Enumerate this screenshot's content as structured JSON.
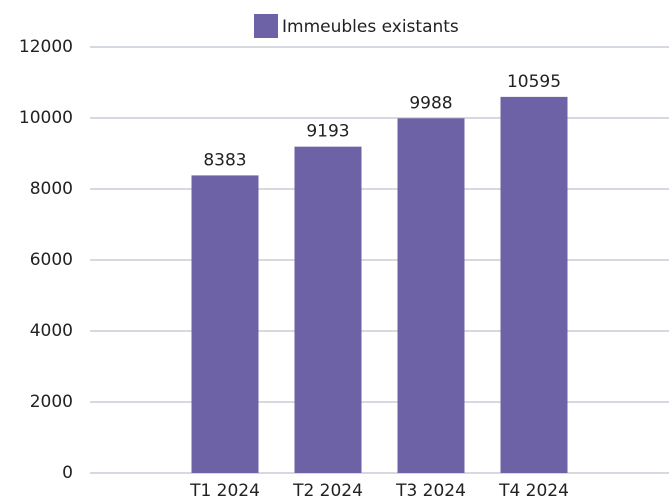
{
  "chart_data": {
    "type": "bar",
    "categories": [
      "T1 2024",
      "T2 2024",
      "T3 2024",
      "T4 2024"
    ],
    "series": [
      {
        "name": "Immeubles existants",
        "color": "#6e62a6",
        "values": [
          8383,
          9193,
          9988,
          10595
        ]
      }
    ],
    "ylim": [
      0,
      12000
    ],
    "yticks": [
      0,
      2000,
      4000,
      6000,
      8000,
      10000,
      12000
    ],
    "grid": true,
    "legend": "top"
  }
}
